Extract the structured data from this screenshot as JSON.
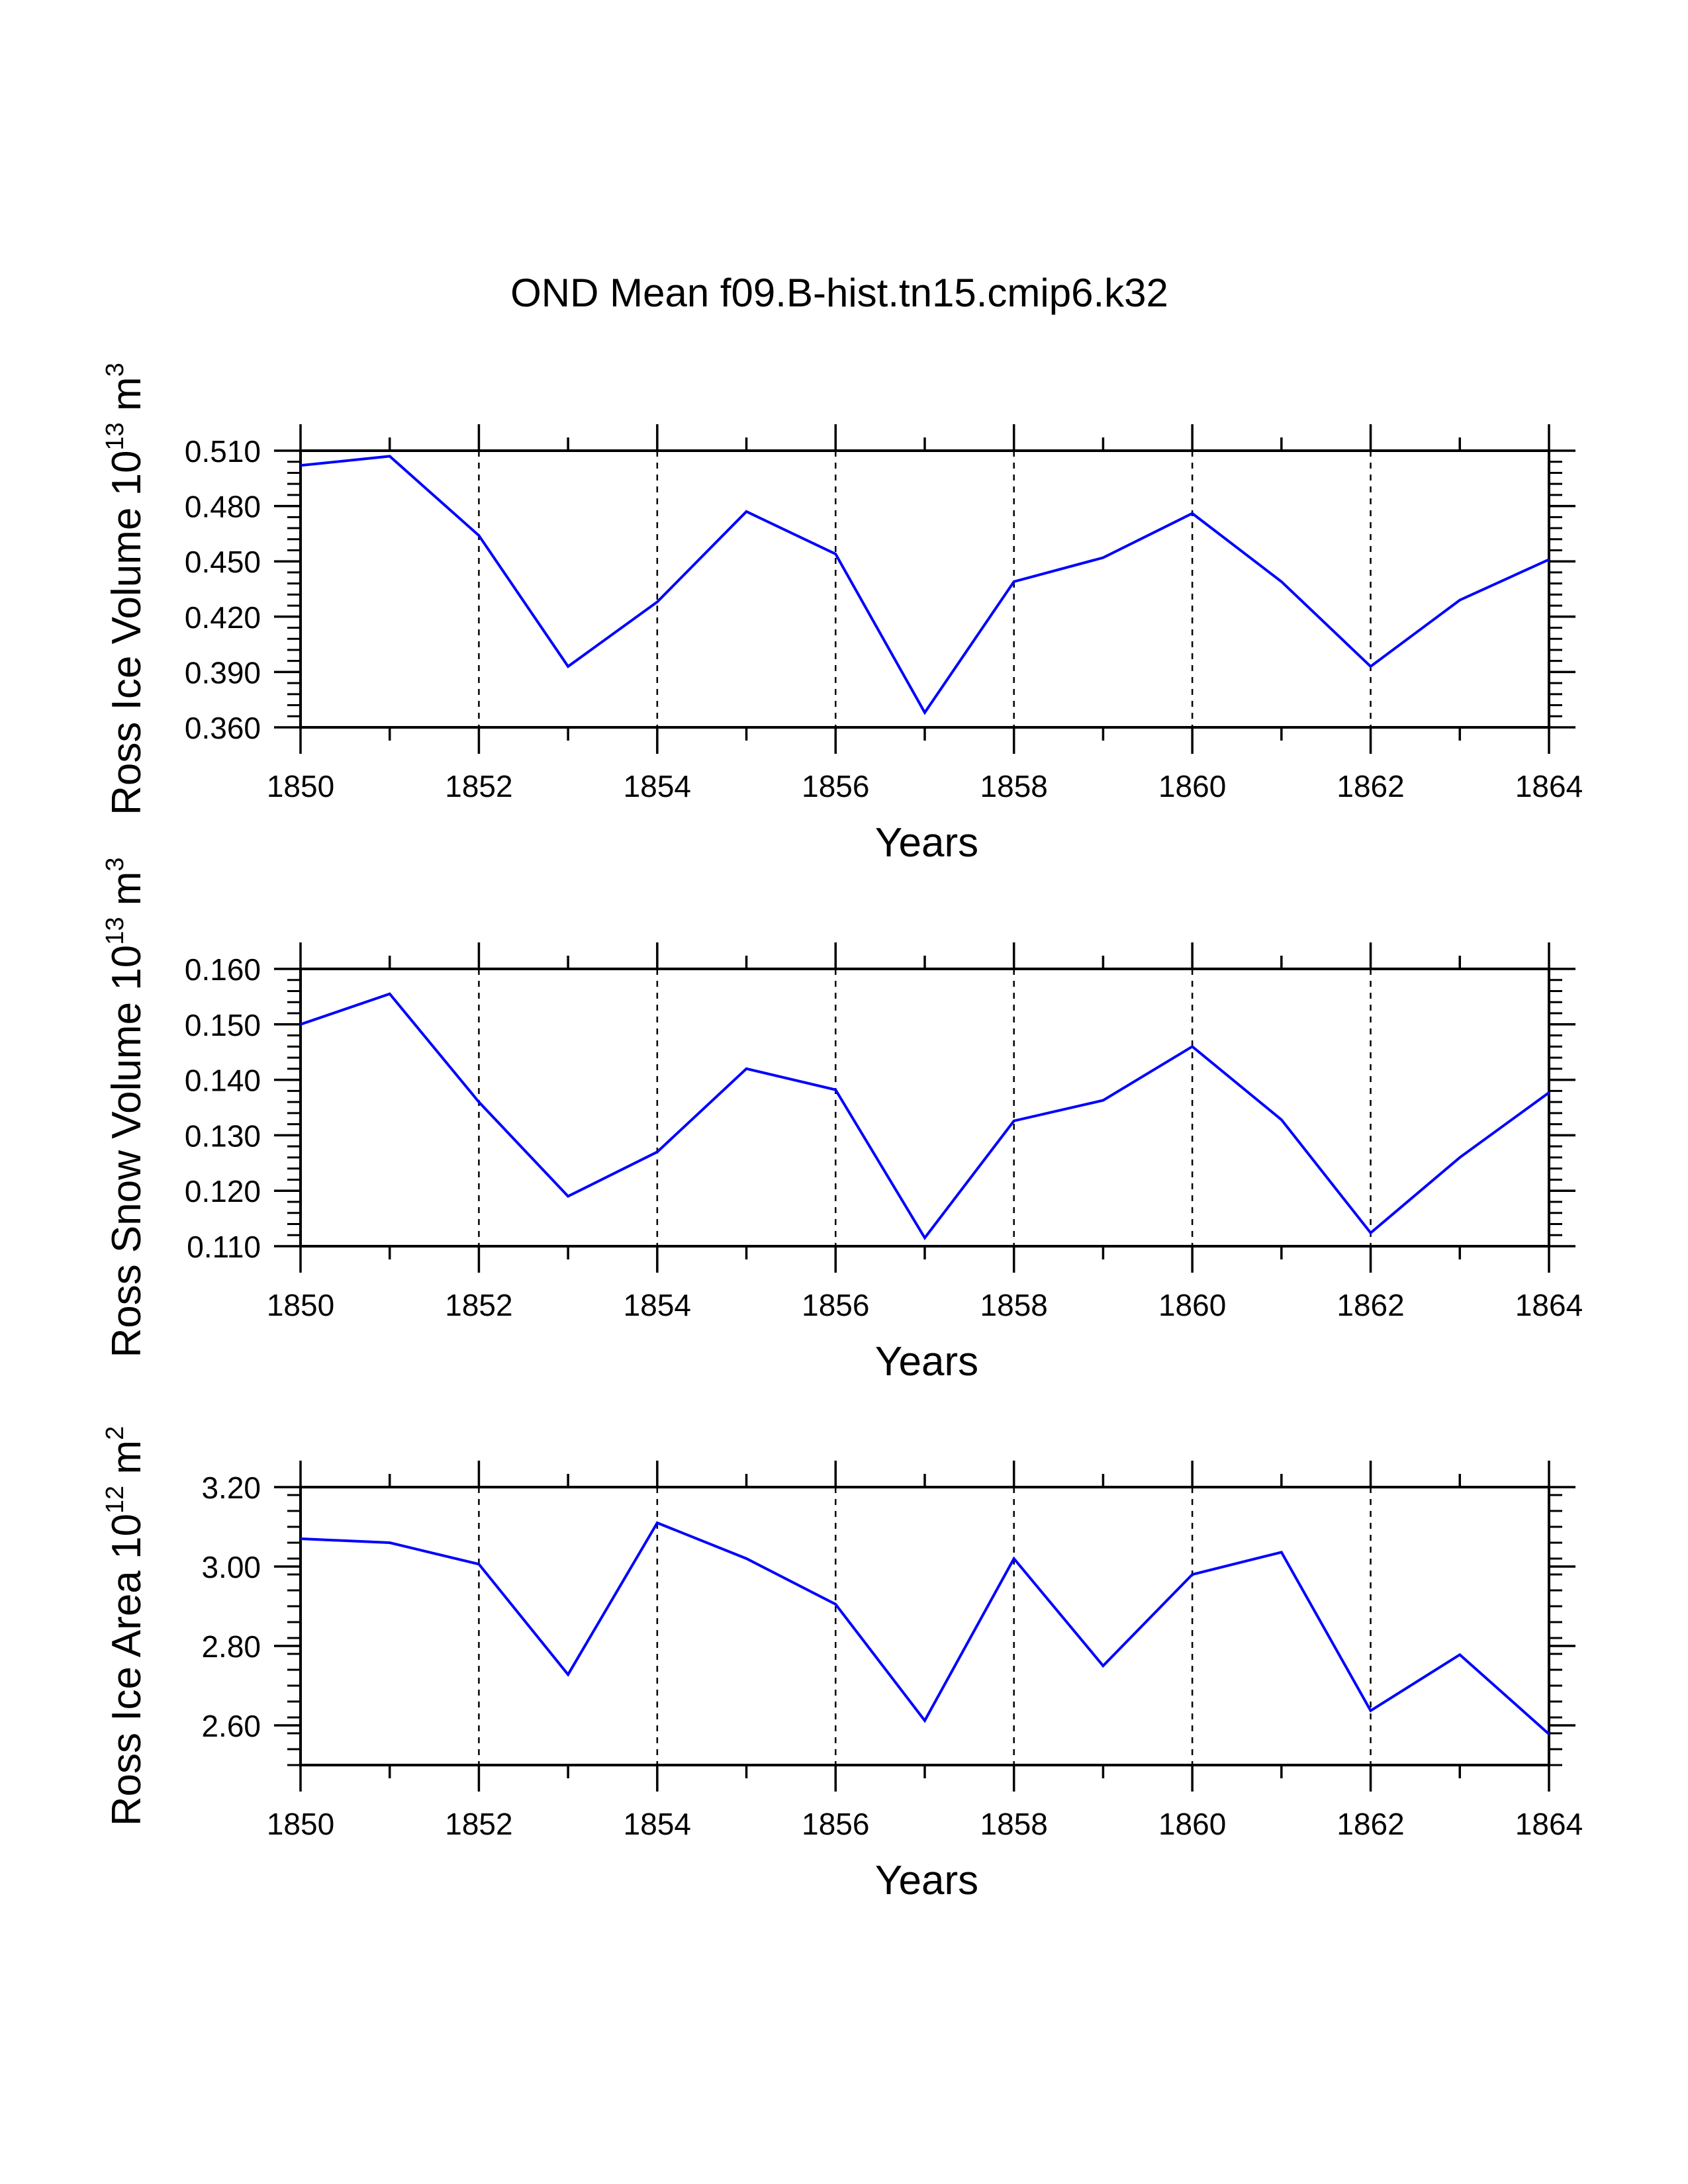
{
  "page": {
    "title": "OND Mean f09.B-hist.tn15.cmip6.k32"
  },
  "chart_data": [
    {
      "type": "line",
      "title": "OND Mean f09.B-hist.tn15.cmip6.k32",
      "xlabel": "Years",
      "ylabel": {
        "main": "Ross Ice Volume 10",
        "exp": "13",
        "unit": " m",
        "unit_exp": "3"
      },
      "x": [
        1850,
        1851,
        1852,
        1853,
        1854,
        1855,
        1856,
        1857,
        1858,
        1859,
        1860,
        1861,
        1862,
        1863,
        1864
      ],
      "series": [
        {
          "name": "Ross Ice Volume",
          "color": "#0000ff",
          "values": [
            0.502,
            0.507,
            0.464,
            0.393,
            0.428,
            0.477,
            0.454,
            0.368,
            0.439,
            0.452,
            0.476,
            0.439,
            0.393,
            0.429,
            0.451
          ]
        }
      ],
      "xlim": [
        1850,
        1864
      ],
      "ylim": [
        0.36,
        0.51
      ],
      "xticks": [
        "1850",
        "1852",
        "1854",
        "1856",
        "1858",
        "1860",
        "1862",
        "1864"
      ],
      "yticks": [
        "0.360",
        "0.390",
        "0.420",
        "0.450",
        "0.480",
        "0.510"
      ],
      "grid": "vertical dashed"
    },
    {
      "type": "line",
      "title": "",
      "xlabel": "Years",
      "ylabel": {
        "main": "Ross Snow Volume 10",
        "exp": "13",
        "unit": " m",
        "unit_exp": "3"
      },
      "x": [
        1850,
        1851,
        1852,
        1853,
        1854,
        1855,
        1856,
        1857,
        1858,
        1859,
        1860,
        1861,
        1862,
        1863,
        1864
      ],
      "series": [
        {
          "name": "Ross Snow Volume",
          "color": "#0000ff",
          "values": [
            0.15,
            0.1555,
            0.136,
            0.119,
            0.127,
            0.142,
            0.1382,
            0.1115,
            0.1326,
            0.1363,
            0.146,
            0.1328,
            0.1124,
            0.126,
            0.1377
          ]
        }
      ],
      "xlim": [
        1850,
        1864
      ],
      "ylim": [
        0.11,
        0.16
      ],
      "xticks": [
        "1850",
        "1852",
        "1854",
        "1856",
        "1858",
        "1860",
        "1862",
        "1864"
      ],
      "yticks": [
        "0.110",
        "0.120",
        "0.130",
        "0.140",
        "0.150",
        "0.160"
      ],
      "grid": "vertical dashed"
    },
    {
      "type": "line",
      "title": "",
      "xlabel": "Years",
      "ylabel": {
        "main": "Ross Ice Area 10",
        "exp": "12",
        "unit": " m",
        "unit_exp": "2"
      },
      "x": [
        1850,
        1851,
        1852,
        1853,
        1854,
        1855,
        1856,
        1857,
        1858,
        1859,
        1860,
        1861,
        1862,
        1863,
        1864
      ],
      "series": [
        {
          "name": "Ross Ice Area",
          "color": "#0000ff",
          "values": [
            3.07,
            3.06,
            3.006,
            2.728,
            3.11,
            3.02,
            2.905,
            2.612,
            3.02,
            2.75,
            2.98,
            3.036,
            2.637,
            2.778,
            2.578
          ]
        }
      ],
      "xlim": [
        1850,
        1864
      ],
      "ylim": [
        2.5,
        3.2
      ],
      "xticks": [
        "1850",
        "1852",
        "1854",
        "1856",
        "1858",
        "1860",
        "1862",
        "1864"
      ],
      "yticks": [
        "2.60",
        "2.80",
        "3.00",
        "3.20"
      ],
      "grid": "vertical dashed"
    }
  ]
}
